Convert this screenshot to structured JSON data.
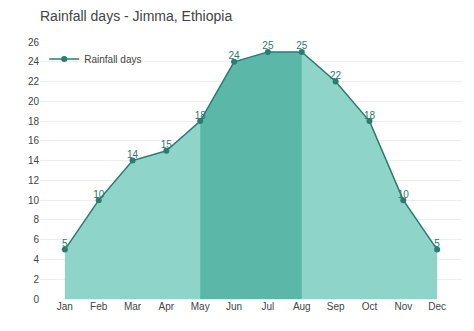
{
  "chart_data": {
    "type": "area",
    "title": "Rainfall days - Jimma, Ethiopia",
    "categories": [
      "Jan",
      "Feb",
      "Mar",
      "Apr",
      "May",
      "Jun",
      "Jul",
      "Aug",
      "Sep",
      "Oct",
      "Nov",
      "Dec"
    ],
    "series": [
      {
        "name": "Rainfall days",
        "color": "#2a7c6f",
        "colors": [
          "#8fd4c8",
          "#8fd4c8",
          "#8fd4c8",
          "#8fd4c8",
          "#5bb8a8",
          "#5bb8a8",
          "#5bb8a8",
          "#5bb8a8",
          "#8fd4c8",
          "#8fd4c8",
          "#8fd4c8",
          "#8fd4c8"
        ],
        "values": [
          5,
          10,
          14,
          15,
          18,
          24,
          25,
          25,
          22,
          18,
          10,
          5
        ]
      }
    ],
    "ylim": [
      0,
      26
    ],
    "yticks": [
      0,
      2,
      4,
      6,
      8,
      10,
      12,
      14,
      16,
      18,
      20,
      22,
      24,
      26
    ],
    "grid": true,
    "legend": "upper left",
    "data_labels": true
  }
}
